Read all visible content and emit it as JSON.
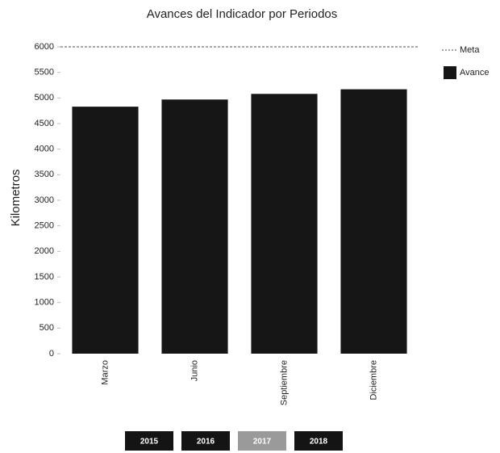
{
  "chart_data": {
    "type": "bar",
    "title": "Avances del Indicador por Periodos",
    "y_label": "Kilometros",
    "categories": [
      "Marzo",
      "Junio",
      "Septiembre",
      "Diciembre"
    ],
    "series": [
      {
        "name": "Meta",
        "type": "line",
        "color": "#888888",
        "values": [
          6000,
          6000,
          6000,
          6000
        ]
      },
      {
        "name": "Avance",
        "type": "bar",
        "color": "#161616",
        "values": [
          4830,
          4970,
          5080,
          5170
        ]
      }
    ],
    "ylim": [
      0,
      6000
    ],
    "yticks": [
      0,
      500,
      1000,
      1500,
      2000,
      2500,
      3000,
      3500,
      4000,
      4500,
      5000,
      5500,
      6000
    ],
    "legend": "right"
  },
  "buttons": [
    "2015",
    "2016",
    "2017",
    "2018"
  ],
  "selected_button": 2
}
